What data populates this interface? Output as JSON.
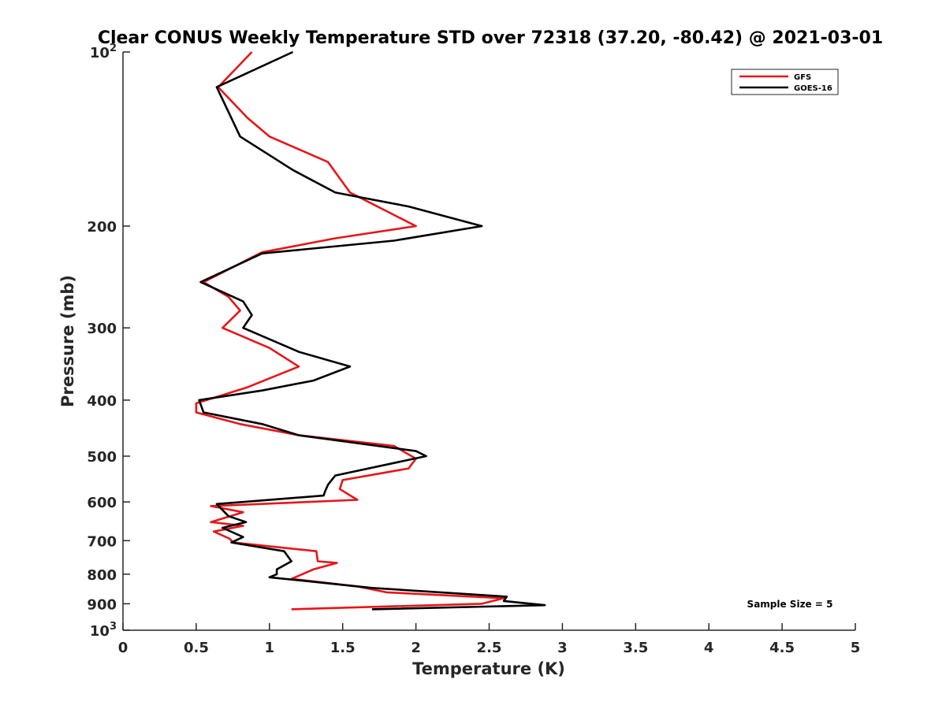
{
  "chart_data": {
    "type": "line",
    "title": "Clear CONUS Weekly Temperature STD over 72318 (37.20, -80.42) @ 2021-03-01",
    "xlabel": "Temperature (K)",
    "ylabel": "Pressure (mb)",
    "xlim": [
      0,
      5
    ],
    "ylim": [
      100,
      1000
    ],
    "y_scale": "log",
    "y_reversed": true,
    "x_ticks": [
      "0",
      "0.5",
      "1",
      "1.5",
      "2",
      "2.5",
      "3",
      "3.5",
      "4",
      "4.5",
      "5"
    ],
    "y_ticks": [
      {
        "value": 100,
        "label": "10",
        "sup": "2"
      },
      {
        "value": 200,
        "label": "200"
      },
      {
        "value": 300,
        "label": "300"
      },
      {
        "value": 400,
        "label": "400"
      },
      {
        "value": 500,
        "label": "500"
      },
      {
        "value": 600,
        "label": "600"
      },
      {
        "value": 700,
        "label": "700"
      },
      {
        "value": 800,
        "label": "800"
      },
      {
        "value": 900,
        "label": "900"
      },
      {
        "value": 1000,
        "label": "10",
        "sup": "3"
      }
    ],
    "grid": false,
    "legend_position": "top-right",
    "series": [
      {
        "name": "GFS",
        "color": "#e6161a",
        "points": [
          [
            0.88,
            100
          ],
          [
            0.65,
            115
          ],
          [
            0.85,
            130
          ],
          [
            1.0,
            140
          ],
          [
            1.4,
            155
          ],
          [
            1.55,
            175
          ],
          [
            2.0,
            200
          ],
          [
            1.45,
            210
          ],
          [
            0.95,
            222
          ],
          [
            0.55,
            250
          ],
          [
            0.72,
            265
          ],
          [
            0.8,
            280
          ],
          [
            0.68,
            300
          ],
          [
            1.0,
            325
          ],
          [
            1.2,
            350
          ],
          [
            0.85,
            380
          ],
          [
            0.5,
            405
          ],
          [
            0.5,
            420
          ],
          [
            0.8,
            440
          ],
          [
            1.2,
            460
          ],
          [
            1.85,
            480
          ],
          [
            2.0,
            505
          ],
          [
            1.95,
            525
          ],
          [
            1.5,
            550
          ],
          [
            1.48,
            570
          ],
          [
            1.6,
            595
          ],
          [
            0.6,
            610
          ],
          [
            0.82,
            625
          ],
          [
            0.6,
            650
          ],
          [
            0.82,
            660
          ],
          [
            0.62,
            675
          ],
          [
            0.73,
            695
          ],
          [
            0.75,
            705
          ],
          [
            1.32,
            730
          ],
          [
            1.33,
            760
          ],
          [
            1.46,
            765
          ],
          [
            1.3,
            785
          ],
          [
            1.15,
            815
          ],
          [
            1.6,
            840
          ],
          [
            1.8,
            860
          ],
          [
            2.6,
            880
          ],
          [
            2.45,
            900
          ],
          [
            1.15,
            920
          ]
        ]
      },
      {
        "name": "GOES-16",
        "color": "#000000",
        "points": [
          [
            1.16,
            100
          ],
          [
            0.64,
            115
          ],
          [
            0.8,
            140
          ],
          [
            1.16,
            160
          ],
          [
            1.45,
            175
          ],
          [
            1.95,
            185
          ],
          [
            2.45,
            200
          ],
          [
            1.85,
            212
          ],
          [
            0.95,
            223
          ],
          [
            0.53,
            250
          ],
          [
            0.82,
            270
          ],
          [
            0.88,
            285
          ],
          [
            0.82,
            300
          ],
          [
            1.2,
            330
          ],
          [
            1.55,
            350
          ],
          [
            1.3,
            370
          ],
          [
            0.95,
            385
          ],
          [
            0.52,
            400
          ],
          [
            0.55,
            420
          ],
          [
            0.95,
            440
          ],
          [
            1.2,
            460
          ],
          [
            2.0,
            490
          ],
          [
            2.07,
            500
          ],
          [
            1.45,
            540
          ],
          [
            1.4,
            560
          ],
          [
            1.38,
            575
          ],
          [
            1.37,
            585
          ],
          [
            0.64,
            605
          ],
          [
            0.72,
            635
          ],
          [
            0.84,
            650
          ],
          [
            0.68,
            665
          ],
          [
            0.82,
            690
          ],
          [
            0.74,
            705
          ],
          [
            1.1,
            730
          ],
          [
            1.15,
            760
          ],
          [
            1.05,
            785
          ],
          [
            1.05,
            800
          ],
          [
            1.0,
            810
          ],
          [
            1.7,
            845
          ],
          [
            2.62,
            875
          ],
          [
            2.6,
            890
          ],
          [
            2.88,
            905
          ],
          [
            1.7,
            920
          ]
        ]
      }
    ],
    "annotation": "Sample Size = 5"
  }
}
